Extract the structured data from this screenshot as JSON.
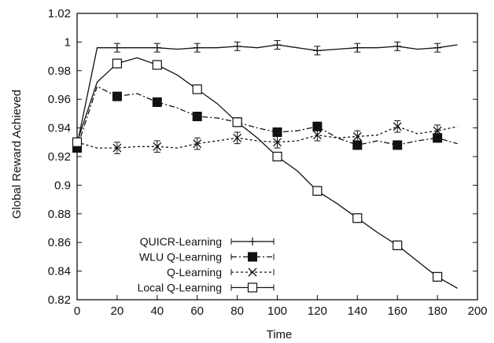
{
  "chart_data": {
    "type": "line",
    "title": "",
    "xlabel": "Time",
    "ylabel": "Global Reward Achieved",
    "xlim": [
      0,
      200
    ],
    "ylim": [
      0.82,
      1.02
    ],
    "xticks": [
      "0",
      "20",
      "40",
      "60",
      "80",
      "100",
      "120",
      "140",
      "160",
      "180",
      "200"
    ],
    "yticks": [
      "0.82",
      "0.84",
      "0.86",
      "0.88",
      "0.9",
      "0.92",
      "0.94",
      "0.96",
      "0.98",
      "1",
      "1.02"
    ],
    "grid": false,
    "legend_position": "bottom-left",
    "series": [
      {
        "name": "QUICR-Learning",
        "marker": "plus",
        "line_style": "solid",
        "x": [
          0,
          10,
          20,
          30,
          40,
          50,
          60,
          70,
          80,
          90,
          100,
          110,
          120,
          130,
          140,
          150,
          160,
          170,
          180,
          190
        ],
        "y": [
          0.928,
          0.996,
          0.996,
          0.996,
          0.996,
          0.995,
          0.996,
          0.996,
          0.997,
          0.996,
          0.998,
          0.996,
          0.994,
          0.995,
          0.996,
          0.996,
          0.997,
          0.995,
          0.996,
          0.998
        ],
        "markers_at": [
          20,
          40,
          60,
          80,
          100,
          120,
          140,
          160,
          180
        ],
        "error": 0.003
      },
      {
        "name": "WLU Q-Learning",
        "marker": "filled-square",
        "line_style": "dashed",
        "x": [
          0,
          10,
          20,
          30,
          40,
          50,
          60,
          70,
          80,
          90,
          100,
          110,
          120,
          130,
          140,
          150,
          160,
          170,
          180,
          190
        ],
        "y": [
          0.926,
          0.969,
          0.962,
          0.964,
          0.958,
          0.954,
          0.948,
          0.947,
          0.944,
          0.94,
          0.937,
          0.938,
          0.941,
          0.933,
          0.928,
          0.931,
          0.928,
          0.931,
          0.933,
          0.929
        ],
        "markers_at": [
          0,
          20,
          40,
          60,
          80,
          100,
          120,
          140,
          160,
          180
        ],
        "error": 0.003
      },
      {
        "name": "Q-Learning",
        "marker": "x",
        "line_style": "dotted",
        "x": [
          0,
          10,
          20,
          30,
          40,
          50,
          60,
          70,
          80,
          90,
          100,
          110,
          120,
          130,
          140,
          150,
          160,
          170,
          180,
          190
        ],
        "y": [
          0.93,
          0.926,
          0.926,
          0.927,
          0.927,
          0.926,
          0.929,
          0.931,
          0.933,
          0.931,
          0.93,
          0.931,
          0.935,
          0.933,
          0.934,
          0.935,
          0.941,
          0.936,
          0.938,
          0.941
        ],
        "markers_at": [
          20,
          40,
          60,
          80,
          100,
          120,
          140,
          160,
          180
        ],
        "error": 0.004
      },
      {
        "name": "Local Q-Learning",
        "marker": "open-square",
        "line_style": "solid",
        "x": [
          0,
          10,
          20,
          30,
          40,
          50,
          60,
          70,
          80,
          90,
          100,
          110,
          120,
          130,
          140,
          150,
          160,
          170,
          180,
          190
        ],
        "y": [
          0.93,
          0.972,
          0.985,
          0.989,
          0.984,
          0.977,
          0.967,
          0.957,
          0.944,
          0.933,
          0.92,
          0.91,
          0.896,
          0.887,
          0.877,
          0.867,
          0.858,
          0.847,
          0.836,
          0.828
        ],
        "markers_at": [
          0,
          20,
          40,
          60,
          80,
          100,
          120,
          140,
          160,
          180
        ],
        "error": 0.003
      }
    ]
  }
}
